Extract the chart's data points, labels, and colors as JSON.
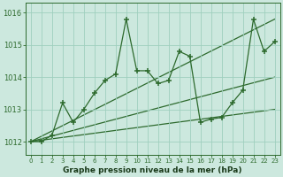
{
  "x": [
    0,
    1,
    2,
    3,
    4,
    5,
    6,
    7,
    8,
    9,
    10,
    11,
    12,
    13,
    14,
    15,
    16,
    17,
    18,
    19,
    20,
    21,
    22,
    23
  ],
  "y": [
    1012.0,
    1012.0,
    1012.2,
    1013.2,
    1012.6,
    1013.0,
    1013.5,
    1013.9,
    1014.1,
    1015.8,
    1014.2,
    1014.2,
    1013.8,
    1013.9,
    1014.8,
    1014.65,
    1012.6,
    1012.7,
    1012.75,
    1013.2,
    1013.6,
    1015.8,
    1014.8,
    1015.1
  ],
  "trend_lines": [
    {
      "x0": 0,
      "y0": 1012.0,
      "x1": 23,
      "y1": 1015.8
    },
    {
      "x0": 0,
      "y0": 1012.0,
      "x1": 23,
      "y1": 1014.0
    },
    {
      "x0": 0,
      "y0": 1012.0,
      "x1": 23,
      "y1": 1013.0
    }
  ],
  "line_color": "#2d6a2d",
  "bg_color": "#cce8de",
  "grid_color": "#9fcfbe",
  "xlabel": "Graphe pression niveau de la mer (hPa)",
  "ylim": [
    1011.6,
    1016.3
  ],
  "yticks": [
    1012,
    1013,
    1014,
    1015,
    1016
  ],
  "xticks": [
    0,
    1,
    2,
    3,
    4,
    5,
    6,
    7,
    8,
    9,
    10,
    11,
    12,
    13,
    14,
    15,
    16,
    17,
    18,
    19,
    20,
    21,
    22,
    23
  ],
  "xlim": [
    -0.5,
    23.5
  ]
}
